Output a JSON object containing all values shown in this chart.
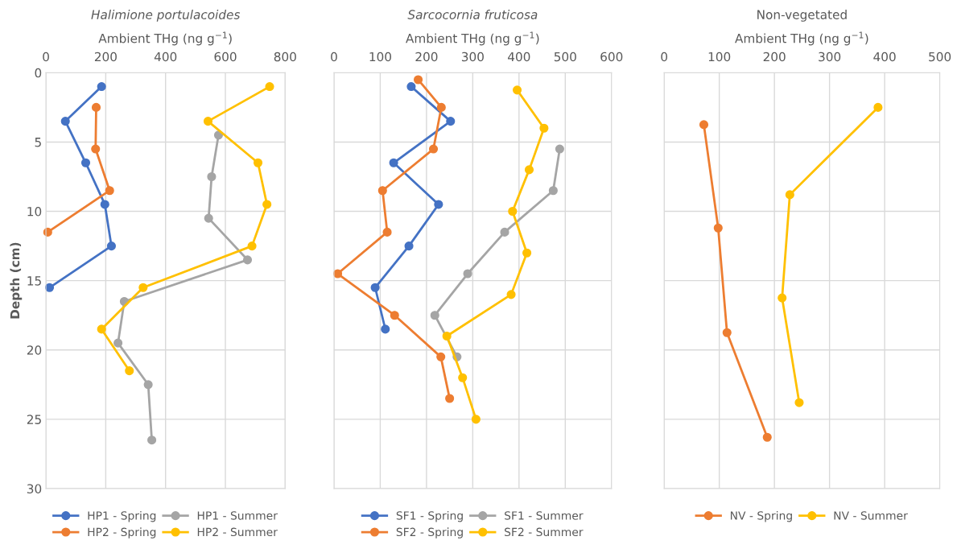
{
  "chart_data": [
    {
      "type": "line",
      "title": "Halimione portulacoides",
      "xlabel": "Ambient THg (ng g$^{−1}$)",
      "ylabel": "Depth (cm)",
      "xlim": [
        0,
        800
      ],
      "xticks": [
        0,
        200,
        400,
        600,
        800
      ],
      "ylim": [
        30,
        0
      ],
      "yticks": [
        0,
        5,
        10,
        15,
        20,
        25,
        30
      ],
      "grid": true,
      "legend": "bottom",
      "marker": "circle",
      "series": [
        {
          "name": "HP1 - Spring",
          "color": "#4472c4",
          "x": [
            186,
            65,
            133,
            197,
            219,
            12
          ],
          "values": [
            1.0,
            3.5,
            6.5,
            9.5,
            12.5,
            15.5
          ]
        },
        {
          "name": "HP2 - Spring",
          "color": "#ed7d31",
          "x": [
            168,
            166,
            213,
            6
          ],
          "values": [
            2.5,
            5.5,
            8.5,
            11.5
          ]
        },
        {
          "name": "HP1 - Summer",
          "color": "#a5a5a5",
          "x": [
            577,
            554,
            544,
            674,
            262,
            241,
            342,
            354
          ],
          "values": [
            4.5,
            7.5,
            10.5,
            13.5,
            16.5,
            19.5,
            22.5,
            26.5
          ]
        },
        {
          "name": "HP2 - Summer",
          "color": "#ffc000",
          "x": [
            748,
            542,
            709,
            739,
            689,
            325,
            186,
            279
          ],
          "values": [
            1.0,
            3.5,
            6.5,
            9.5,
            12.5,
            15.5,
            18.5,
            21.5
          ]
        }
      ]
    },
    {
      "type": "line",
      "title": "Sarcocornia fruticosa",
      "xlabel": "Ambient THg (ng g$^{−1}$)",
      "xlim": [
        0,
        600
      ],
      "xticks": [
        0,
        100,
        200,
        300,
        400,
        500,
        600
      ],
      "ylim": [
        30,
        0
      ],
      "yticks": [
        0,
        5,
        10,
        15,
        20,
        25,
        30
      ],
      "tick_labels": "x",
      "grid": true,
      "legend": "bottom",
      "marker": "circle",
      "series": [
        {
          "name": "SF1 - Spring",
          "color": "#4472c4",
          "x": [
            167,
            252,
            129,
            226,
            162,
            89,
            111
          ],
          "values": [
            1.0,
            3.5,
            6.5,
            9.5,
            12.5,
            15.5,
            18.5
          ]
        },
        {
          "name": "SF2 - Spring",
          "color": "#ed7d31",
          "x": [
            182,
            232,
            215,
            105,
            115,
            8,
            131,
            231,
            250
          ],
          "values": [
            0.5,
            2.5,
            5.5,
            8.5,
            11.5,
            14.5,
            17.5,
            20.5,
            23.5
          ]
        },
        {
          "name": "SF1 - Summer",
          "color": "#a5a5a5",
          "x": [
            488,
            474,
            369,
            289,
            218,
            266
          ],
          "values": [
            5.5,
            8.5,
            11.5,
            14.5,
            17.5,
            20.5
          ]
        },
        {
          "name": "SF2 - Summer",
          "color": "#ffc000",
          "x": [
            396,
            454,
            422,
            386,
            417,
            383,
            244,
            278,
            307
          ],
          "values": [
            1.25,
            4.0,
            7.0,
            10.0,
            13.0,
            16.0,
            19.0,
            22.0,
            25.0
          ]
        }
      ]
    },
    {
      "type": "line",
      "title": "Non-vegetated",
      "xlabel": "Ambient THg (ng g$^{−1}$)",
      "xlim": [
        0,
        500
      ],
      "xticks": [
        0,
        100,
        200,
        300,
        400,
        500
      ],
      "ylim": [
        30,
        0
      ],
      "yticks": [
        0,
        5,
        10,
        15,
        20,
        25,
        30
      ],
      "tick_labels": "x",
      "grid": true,
      "legend": "bottom",
      "marker": "circle",
      "series": [
        {
          "name": "NV - Spring",
          "color": "#ed7d31",
          "x": [
            72,
            98,
            114,
            187
          ],
          "values": [
            3.75,
            11.2,
            18.75,
            26.3
          ]
        },
        {
          "name": "NV - Summer",
          "color": "#ffc000",
          "x": [
            388,
            228,
            214,
            245
          ],
          "values": [
            2.5,
            8.8,
            16.25,
            23.8
          ]
        }
      ]
    }
  ]
}
